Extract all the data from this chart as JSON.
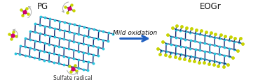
{
  "bg_color": "#ffffff",
  "cyan_color": "#29c8e0",
  "dark_color": "#1c2a6e",
  "yellow_color": "#c8d400",
  "pink_color": "#d4006e",
  "arrow_blue": "#2060c0",
  "arrow_text": "Mild oxidation",
  "label_pg": "PG",
  "label_eogr": "EOGr",
  "label_sulfate": "Sulfate radical",
  "font_size_labels": 8.5,
  "font_size_arrow": 6.5,
  "font_size_sulfate": 5.5
}
